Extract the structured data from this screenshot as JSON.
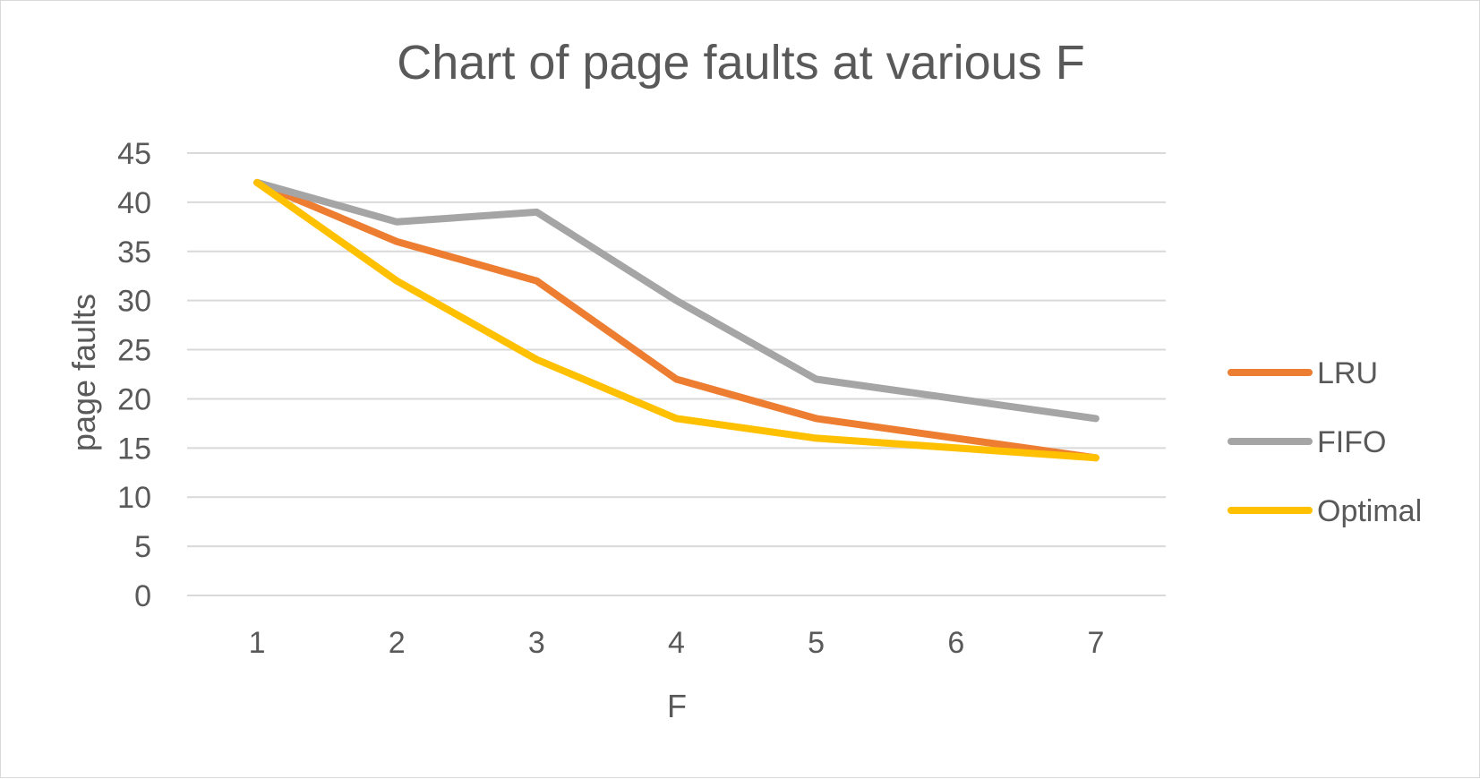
{
  "chart_data": {
    "type": "line",
    "title": "Chart of page faults at various F",
    "xlabel": "F",
    "ylabel": "page faults",
    "categories": [
      "1",
      "2",
      "3",
      "4",
      "5",
      "6",
      "7"
    ],
    "ylim": [
      0,
      45
    ],
    "yticks": [
      0,
      5,
      10,
      15,
      20,
      25,
      30,
      35,
      40,
      45
    ],
    "grid": true,
    "legend_position": "right",
    "series": [
      {
        "name": "LRU",
        "color": "#ED7D31",
        "values": [
          42,
          36,
          32,
          22,
          18,
          16,
          14
        ]
      },
      {
        "name": "FIFO",
        "color": "#A5A5A5",
        "values": [
          42,
          38,
          39,
          30,
          22,
          20,
          18
        ]
      },
      {
        "name": "Optimal",
        "color": "#FFC000",
        "values": [
          42,
          32,
          24,
          18,
          16,
          15,
          14
        ]
      }
    ]
  }
}
